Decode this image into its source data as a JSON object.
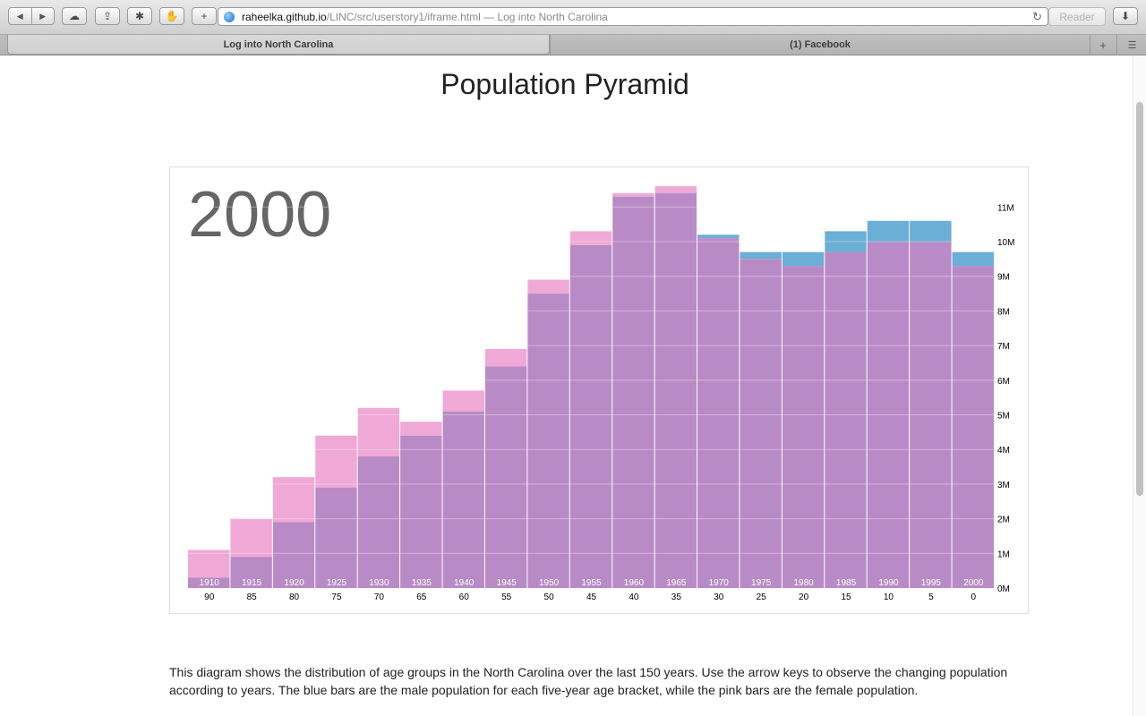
{
  "browser": {
    "url_host": "raheelka.github.io",
    "url_path": "/LINC/src/userstory1/iframe.html",
    "url_separator": " — ",
    "page_title": "Log into North Carolina",
    "reader_label": "Reader",
    "tabs": [
      {
        "label": "Log into North Carolina",
        "active": true
      },
      {
        "label": "(1) Facebook",
        "active": false
      }
    ],
    "icons": [
      "back-icon",
      "forward-icon",
      "cloud-icon",
      "share-icon",
      "bug-icon",
      "hand-icon",
      "add-icon",
      "globe-icon",
      "reload-icon",
      "download-icon",
      "new-tab-icon",
      "tab-list-icon"
    ]
  },
  "page": {
    "title": "Population Pyramid",
    "description": "This diagram shows the distribution of age groups in the North Carolina over the last 150 years. Use the arrow keys to observe the changing population according to years. The blue bars are the male population for each five-year age bracket, while the pink bars are the female population."
  },
  "chart_data": {
    "type": "bar",
    "year": "2000",
    "ages": [
      90,
      85,
      80,
      75,
      70,
      65,
      60,
      55,
      50,
      45,
      40,
      35,
      30,
      25,
      20,
      15,
      10,
      5,
      0
    ],
    "birth_years": [
      "1910",
      "1915",
      "1920",
      "1925",
      "1930",
      "1935",
      "1940",
      "1945",
      "1950",
      "1955",
      "1960",
      "1965",
      "1970",
      "1975",
      "1980",
      "1985",
      "1990",
      "1995",
      "2000"
    ],
    "series": [
      {
        "name": "male",
        "color": "#6baed6",
        "values": [
          0.3,
          0.9,
          1.9,
          2.9,
          3.8,
          4.4,
          5.1,
          6.4,
          8.5,
          9.9,
          11.3,
          11.4,
          10.2,
          9.7,
          9.7,
          10.3,
          10.6,
          10.6,
          9.7
        ]
      },
      {
        "name": "female",
        "color": "#f0a8d6",
        "values": [
          1.1,
          2.0,
          3.2,
          4.4,
          5.2,
          4.8,
          5.7,
          6.9,
          8.9,
          10.3,
          11.4,
          11.6,
          10.1,
          9.5,
          9.3,
          9.7,
          10.0,
          10.0,
          9.3
        ]
      }
    ],
    "overlap_color": "#b98bc6",
    "y_ticks": [
      "0M",
      "1M",
      "2M",
      "3M",
      "4M",
      "5M",
      "6M",
      "7M",
      "8M",
      "9M",
      "10M",
      "11M"
    ],
    "ylim": [
      0,
      12
    ],
    "y_axis_position": "right",
    "grid": true
  }
}
